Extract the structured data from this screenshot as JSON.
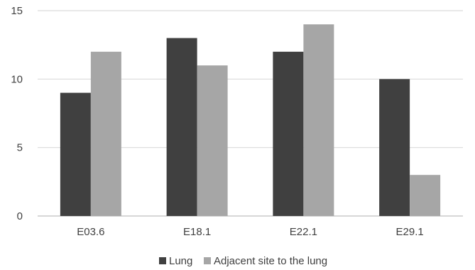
{
  "chart_data": {
    "type": "bar",
    "categories": [
      "E03.6",
      "E18.1",
      "E22.1",
      "E29.1"
    ],
    "series": [
      {
        "name": "Lung",
        "values": [
          9,
          13,
          12,
          10
        ],
        "color": "#404040"
      },
      {
        "name": "Adjacent site to the lung",
        "values": [
          12,
          11,
          14,
          3
        ],
        "color": "#a6a6a6"
      }
    ],
    "yticks": [
      0,
      5,
      10,
      15
    ],
    "ylim": [
      0,
      15
    ],
    "grid": true,
    "legend_position": "bottom",
    "title": "",
    "xlabel": "",
    "ylabel": ""
  }
}
